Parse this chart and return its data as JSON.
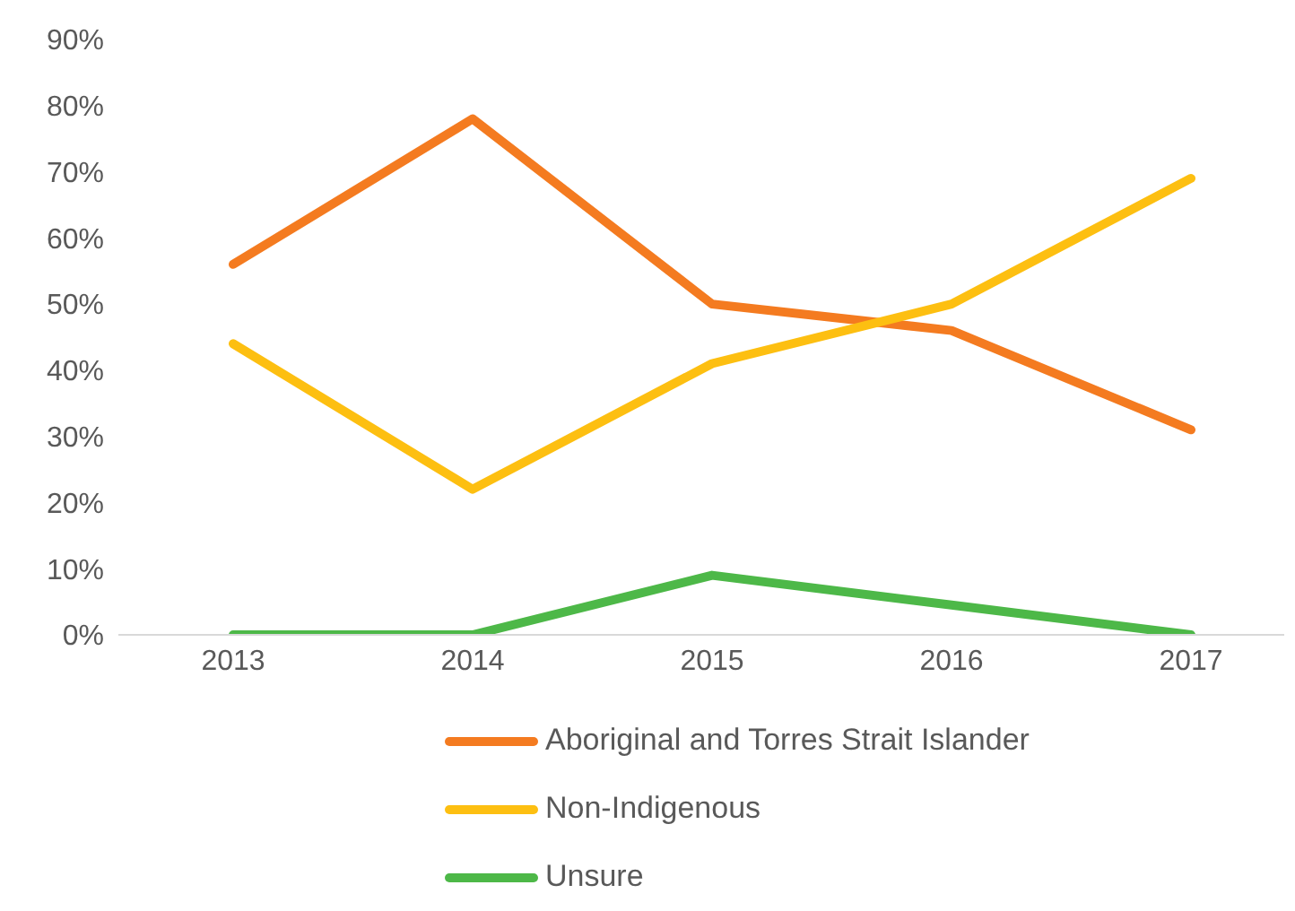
{
  "chart_data": {
    "type": "line",
    "categories": [
      "2013",
      "2014",
      "2015",
      "2016",
      "2017"
    ],
    "series": [
      {
        "name": "Aboriginal and Torres Strait Islander",
        "color": "#f47b20",
        "values": [
          56,
          78,
          50,
          46,
          31
        ]
      },
      {
        "name": "Non-Indigenous",
        "color": "#fdbf11",
        "values": [
          44,
          22,
          41,
          50,
          69
        ]
      },
      {
        "name": "Unsure",
        "color": "#4db848",
        "values": [
          0,
          0,
          9,
          4.5,
          0
        ]
      }
    ],
    "ylim": [
      0,
      90
    ],
    "yticks": [
      {
        "value": 0,
        "label": "0%"
      },
      {
        "value": 10,
        "label": "10%"
      },
      {
        "value": 20,
        "label": "20%"
      },
      {
        "value": 30,
        "label": "30%"
      },
      {
        "value": 40,
        "label": "40%"
      },
      {
        "value": 50,
        "label": "50%"
      },
      {
        "value": 60,
        "label": "60%"
      },
      {
        "value": 70,
        "label": "70%"
      },
      {
        "value": 80,
        "label": "80%"
      },
      {
        "value": 90,
        "label": "90%"
      }
    ],
    "grid": false,
    "legend": "bottom",
    "marker": "none",
    "line_style": "solid"
  }
}
